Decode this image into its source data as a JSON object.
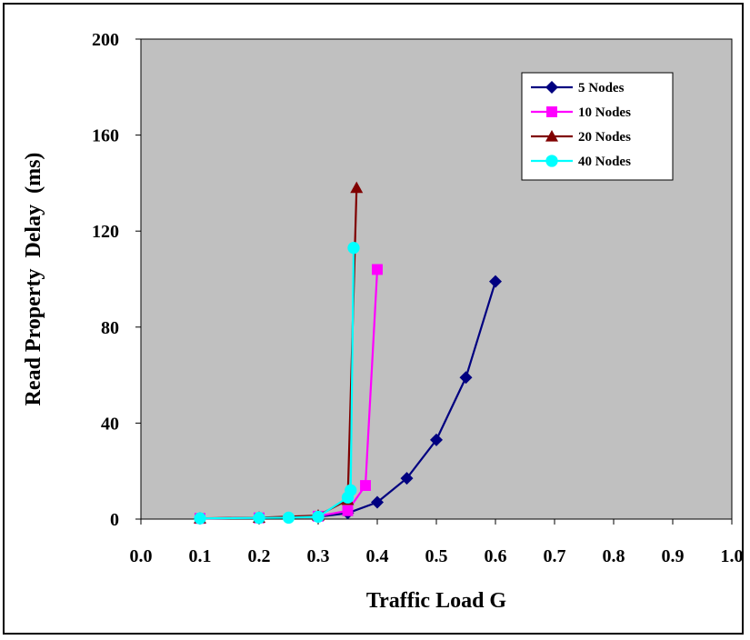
{
  "chart_data": {
    "type": "line",
    "title": "",
    "xlabel": "Traffic Load G",
    "ylabel": "Read Property  Delay  (ms)",
    "xlim": [
      0.0,
      1.0
    ],
    "ylim": [
      0,
      200
    ],
    "xticks": [
      "0.0",
      "0.1",
      "0.2",
      "0.3",
      "0.4",
      "0.5",
      "0.6",
      "0.7",
      "0.8",
      "0.9",
      "1.0"
    ],
    "yticks": [
      "0",
      "40",
      "80",
      "120",
      "160",
      "200"
    ],
    "grid": false,
    "legend_position": "top-right",
    "plot_background": "#c0c0c0",
    "series": [
      {
        "name": "5 Nodes",
        "color": "#000080",
        "marker": "diamond",
        "points": [
          [
            0.1,
            0.3
          ],
          [
            0.2,
            0.5
          ],
          [
            0.3,
            1.0
          ],
          [
            0.35,
            2.5
          ],
          [
            0.4,
            7
          ],
          [
            0.45,
            17
          ],
          [
            0.5,
            33
          ],
          [
            0.55,
            59
          ],
          [
            0.6,
            99
          ]
        ]
      },
      {
        "name": "10 Nodes",
        "color": "#ff00ff",
        "marker": "square",
        "points": [
          [
            0.1,
            0.3
          ],
          [
            0.2,
            0.5
          ],
          [
            0.3,
            1.2
          ],
          [
            0.35,
            3.5
          ],
          [
            0.38,
            14
          ],
          [
            0.4,
            104
          ]
        ]
      },
      {
        "name": "20 Nodes",
        "color": "#800000",
        "marker": "triangle",
        "points": [
          [
            0.1,
            0.3
          ],
          [
            0.2,
            0.6
          ],
          [
            0.3,
            1.5
          ],
          [
            0.35,
            8
          ],
          [
            0.365,
            138
          ]
        ]
      },
      {
        "name": "40 Nodes",
        "color": "#00ffff",
        "marker": "circle",
        "points": [
          [
            0.1,
            0.3
          ],
          [
            0.2,
            0.5
          ],
          [
            0.25,
            0.6
          ],
          [
            0.3,
            1.0
          ],
          [
            0.35,
            9
          ],
          [
            0.355,
            12
          ],
          [
            0.36,
            113
          ]
        ]
      }
    ]
  }
}
